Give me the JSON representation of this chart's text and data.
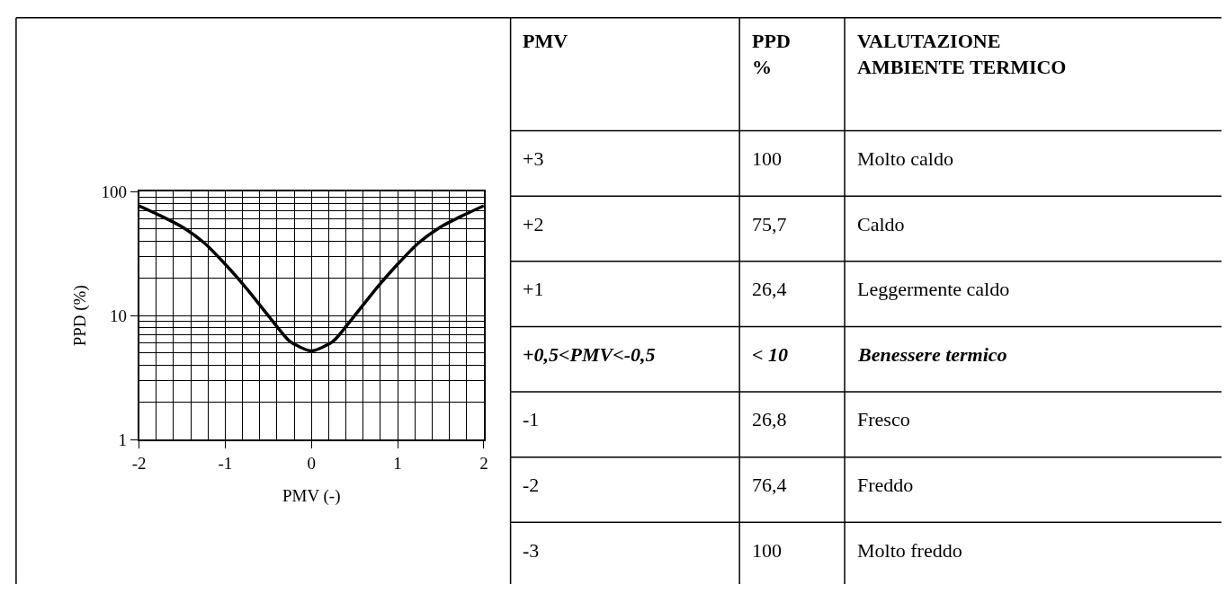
{
  "chart_data": [
    {
      "type": "line",
      "xlabel": "PMV (-)",
      "ylabel": "PPD (%)",
      "x": [
        -2,
        -1.75,
        -1.5,
        -1.25,
        -1,
        -0.75,
        -0.5,
        -0.25,
        0,
        0.25,
        0.5,
        0.75,
        1,
        1.25,
        1.5,
        1.75,
        2
      ],
      "series": [
        {
          "color": "#000000",
          "values": [
            77,
            64,
            52,
            39,
            26,
            16.5,
            10,
            6.2,
            5.2,
            6.2,
            10,
            16.5,
            26,
            39,
            52,
            64,
            77
          ]
        }
      ],
      "xlim": [
        -2,
        2
      ],
      "xticks": [
        -2,
        -1,
        0,
        1,
        2
      ],
      "ylim": [
        1,
        100
      ],
      "yticks": [
        1,
        10,
        100
      ],
      "log": "y",
      "grid": true,
      "line_style": "solid",
      "marker": "none"
    },
    {
      "type": "other",
      "annotations": [
        "PMV",
        "PPD\n%",
        "VALUTAZIONE\nAMBIENTE TERMICO",
        "+3",
        "100",
        "Molto caldo",
        "+2",
        "75,7",
        "Caldo",
        "+1",
        "26,4",
        "Leggermente caldo",
        "+0,5<PMV<-0,5",
        "< 10",
        "Benessere termico",
        "-1",
        "26,8",
        "Fresco",
        "-2",
        "76,4",
        "Freddo",
        "-3",
        "100",
        "Molto freddo"
      ]
    }
  ]
}
